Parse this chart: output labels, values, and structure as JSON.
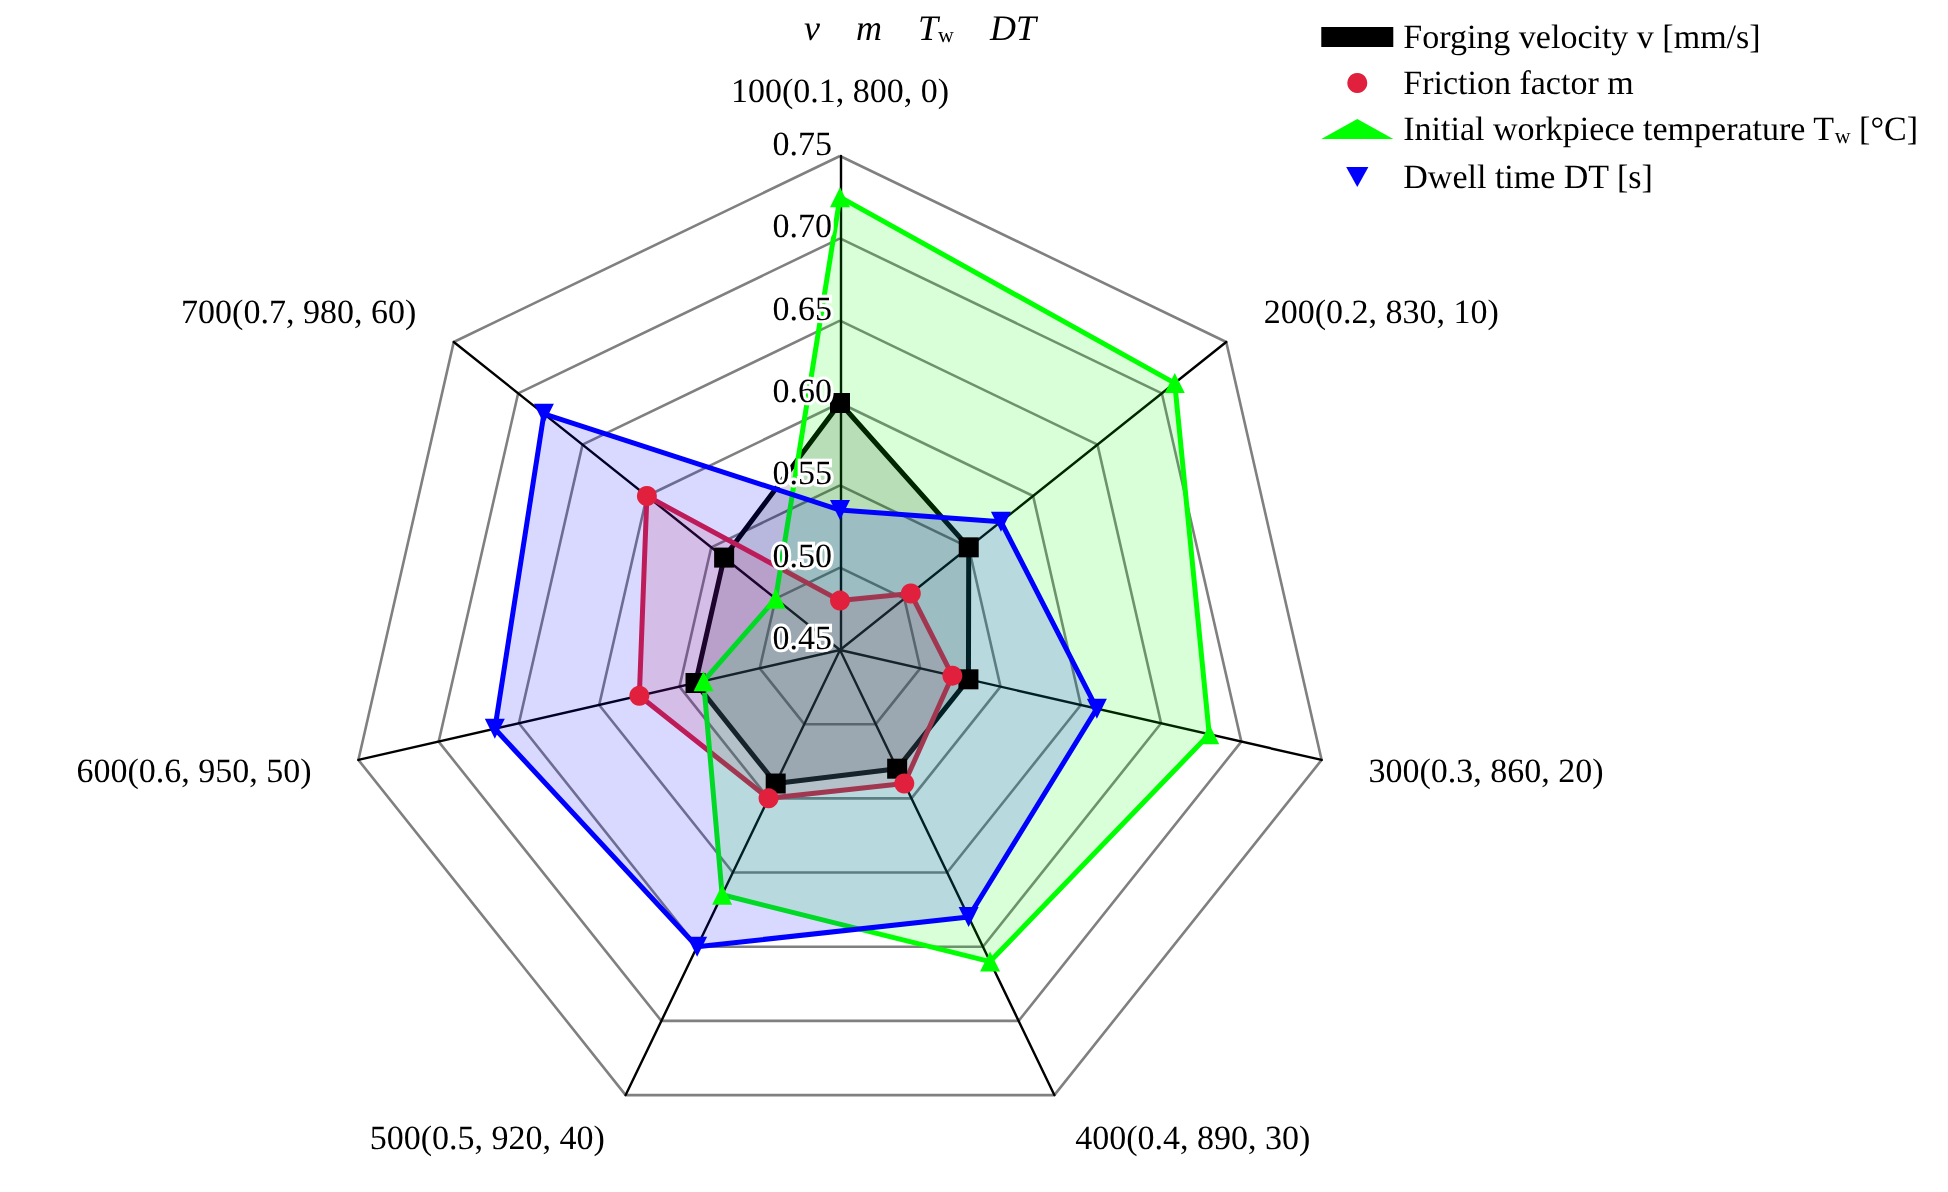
{
  "chart_data": {
    "type": "radar",
    "categories": [
      "100(0.1, 800, 0)",
      "200(0.2, 830, 10)",
      "300(0.3, 860, 20)",
      "400(0.4, 890, 30)",
      "500(0.5, 920, 40)",
      "600(0.6, 950, 50)",
      "700(0.7, 980, 60)"
    ],
    "series": [
      {
        "name": "Forging velocity v [mm/s]",
        "color": "#000000",
        "marker": "square",
        "values": [
          0.6,
          0.55,
          0.53,
          0.53,
          0.54,
          0.54,
          0.54
        ]
      },
      {
        "name": "Friction factor m",
        "color": "#e0203c",
        "marker": "circle",
        "values": [
          0.48,
          0.505,
          0.52,
          0.54,
          0.55,
          0.575,
          0.6
        ]
      },
      {
        "name": "Initial workpiece temperature T$_{w}$ [°C]",
        "color": "#00ff00",
        "marker": "triangle",
        "values": [
          0.725,
          0.71,
          0.68,
          0.66,
          0.615,
          0.535,
          0.5
        ]
      },
      {
        "name": "Dwell time DT [s]",
        "color": "#0000ff",
        "marker": "triangle-down",
        "values": [
          0.535,
          0.575,
          0.61,
          0.63,
          0.65,
          0.665,
          0.68
        ]
      }
    ],
    "ylim": [
      0.45,
      0.75
    ],
    "yticks": [
      0.45,
      {
        "value": 0.5,
        "label": "0.50"
      },
      0.55,
      {
        "value": 0.6,
        "label": "0.60"
      },
      0.65,
      {
        "value": 0.7,
        "label": "0.70"
      },
      0.75
    ],
    "annotations": [
      "v m T$_{w}$ DT"
    ],
    "legend": "top right"
  }
}
